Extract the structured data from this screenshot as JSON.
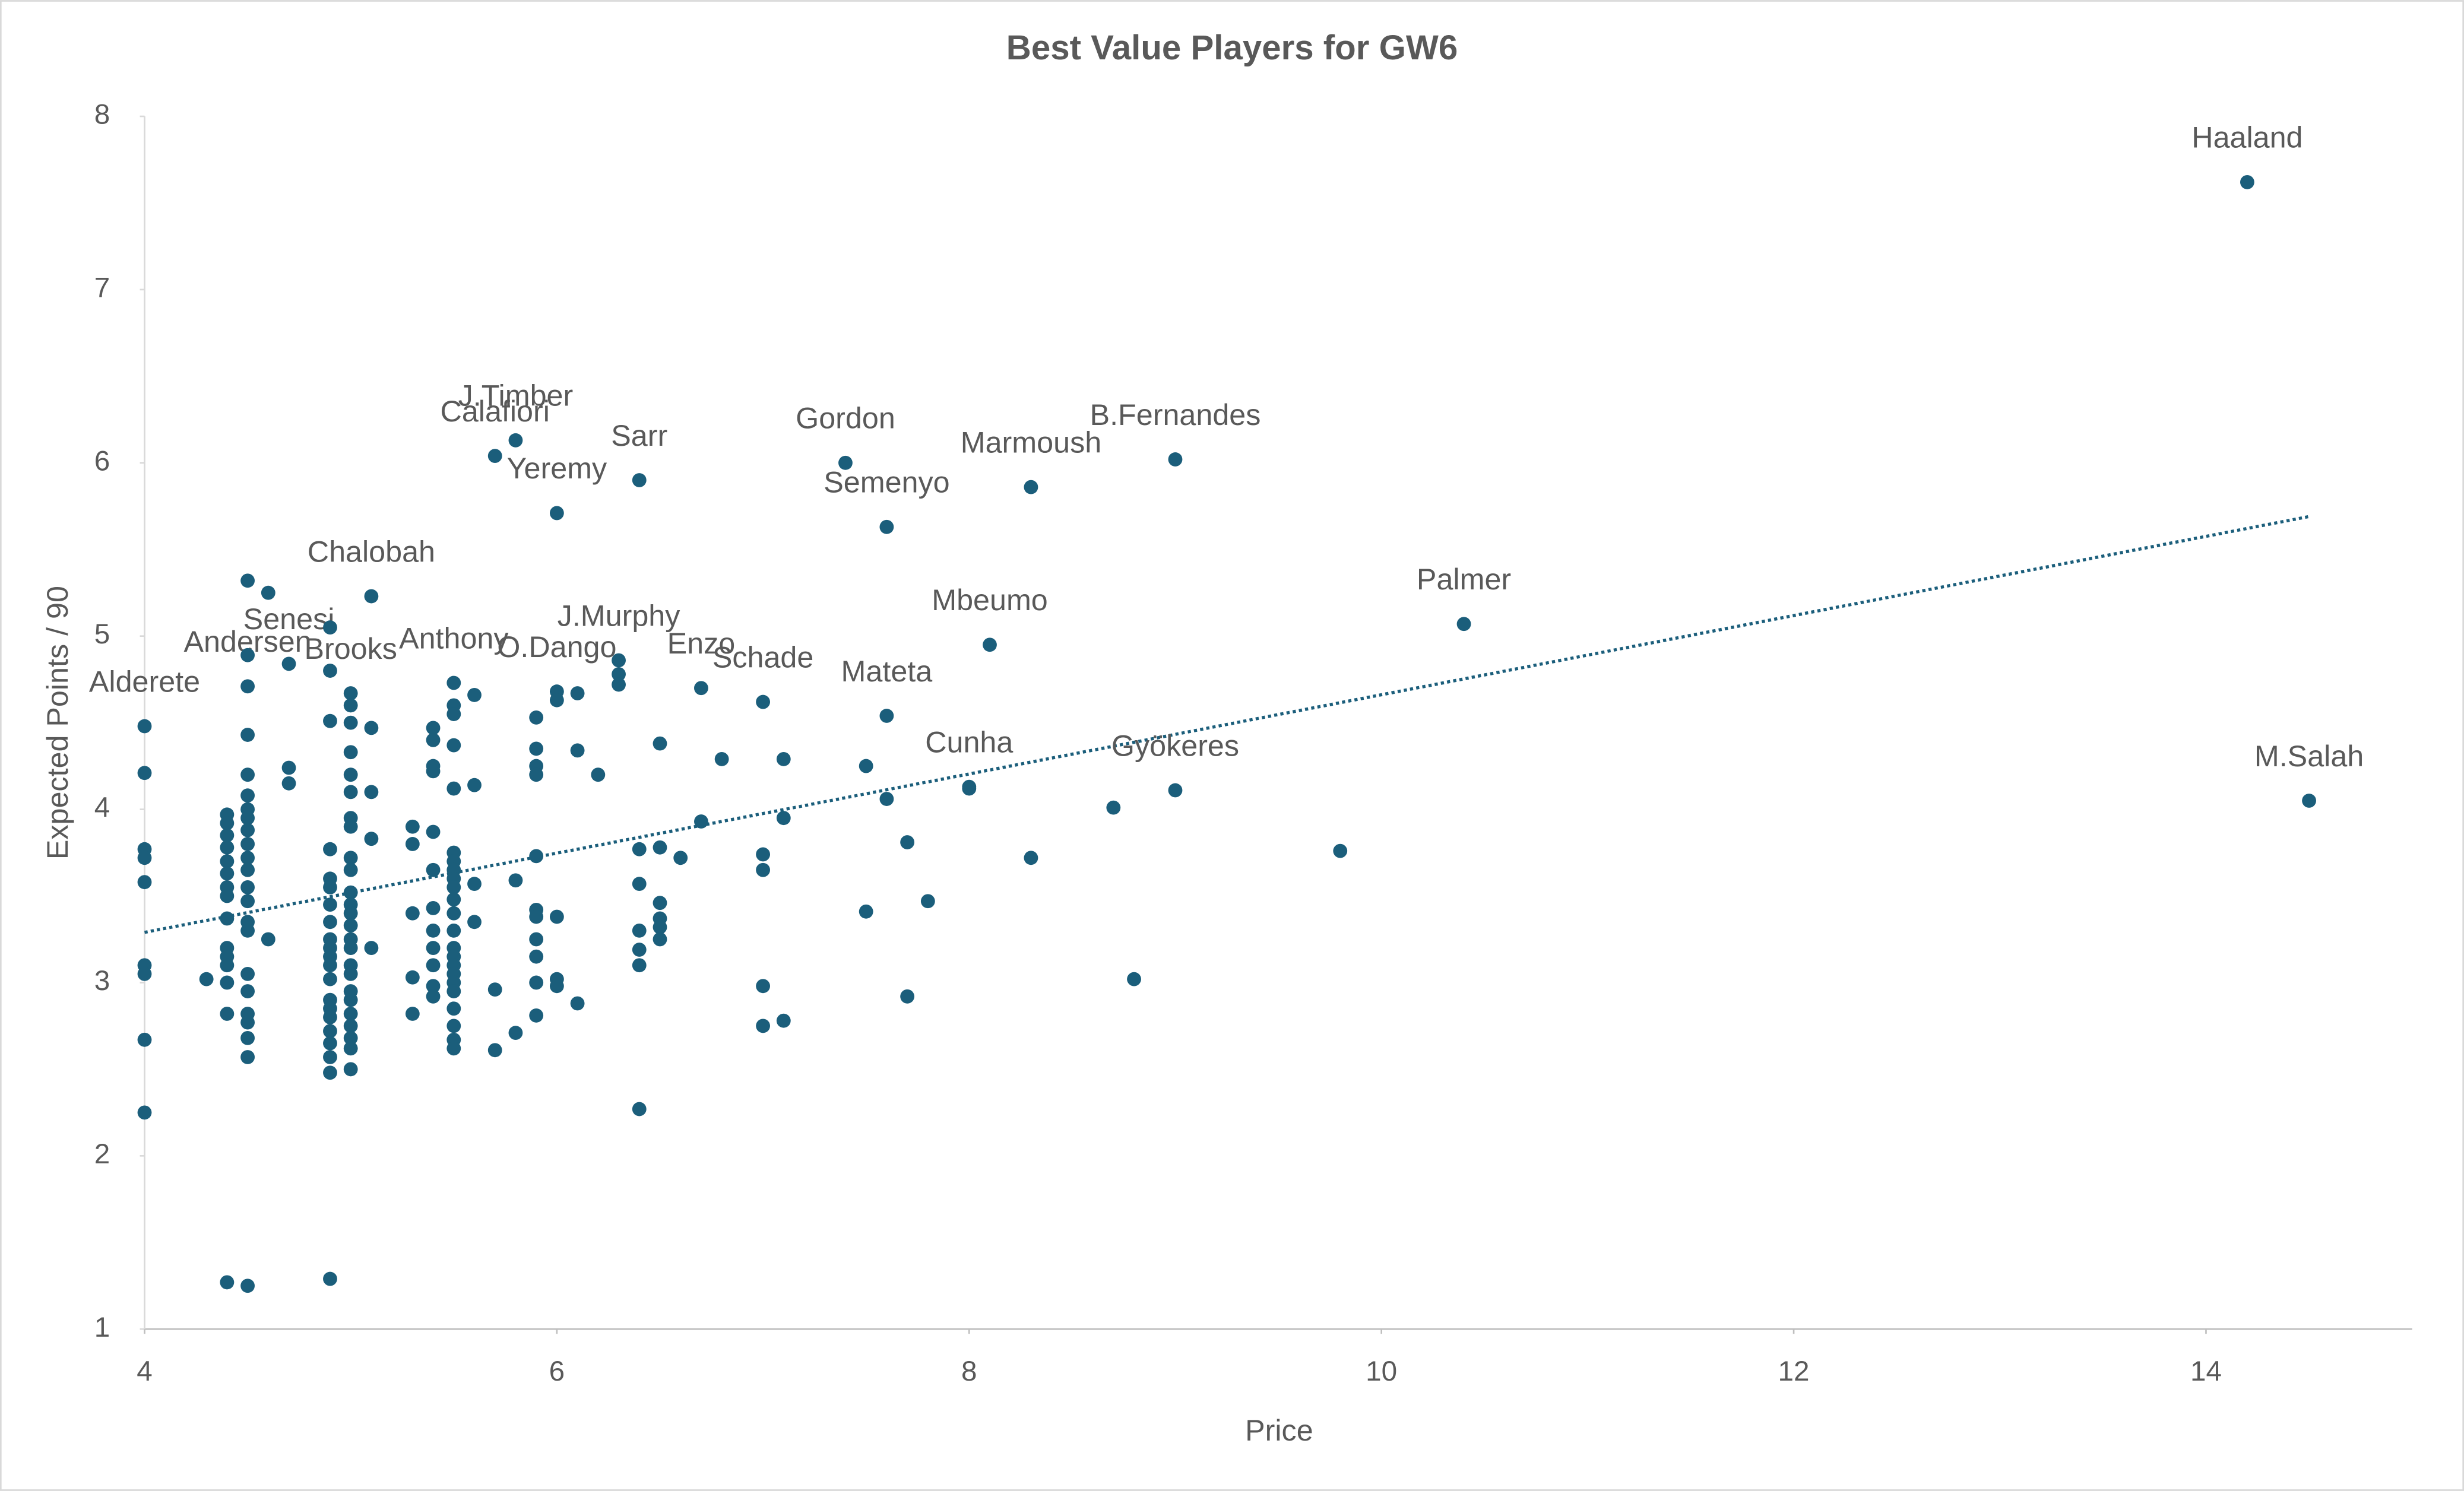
{
  "chart_data": {
    "type": "scatter",
    "title": "Best Value Players for GW6",
    "x_label": "Price",
    "y_label": "Expected Points / 90",
    "xlim": [
      4,
      15
    ],
    "ylim": [
      1,
      8
    ],
    "xticks": [
      4,
      6,
      8,
      10,
      12,
      14
    ],
    "yticks": [
      1,
      2,
      3,
      4,
      5,
      6,
      7,
      8
    ],
    "grid": false,
    "trendline": {
      "style": "dotted",
      "color": "#1b5e7b",
      "x": [
        4,
        14.5
      ],
      "values": [
        3.29,
        5.69
      ]
    },
    "series": [
      {
        "color": "#1b5e7b",
        "labels": [
          "Haaland",
          "M.Salah",
          "Palmer",
          "B.Fernandes",
          "Marmoush",
          "Gordon",
          "Semenyo",
          "Mbeumo",
          "Gyökeres",
          "Cunha",
          "Mateta",
          "Schade",
          "Enzo",
          "Sarr",
          "Yeremy",
          "J.Timber",
          "Calafiori",
          "J.Murphy",
          "O.Dango",
          "Anthony",
          "Chalobah",
          "Senesi",
          "Andersen",
          "Brooks",
          "Alderete"
        ],
        "x": [
          14.2,
          14.5,
          10.4,
          9.0,
          8.3,
          7.4,
          7.6,
          8.1,
          9.0,
          8.0,
          7.6,
          7.0,
          6.7,
          6.4,
          6.0,
          5.8,
          5.7,
          6.3,
          6.0,
          5.5,
          5.1,
          4.7,
          4.5,
          5.0,
          4.0
        ],
        "values": [
          7.62,
          4.05,
          5.07,
          6.02,
          5.86,
          6.0,
          5.63,
          4.95,
          4.11,
          4.13,
          4.54,
          4.62,
          4.7,
          5.9,
          5.71,
          6.13,
          6.04,
          4.86,
          4.68,
          4.73,
          5.23,
          4.84,
          4.71,
          4.67,
          4.48
        ]
      },
      {
        "color": "#1b5e7b",
        "x": [
          4,
          4,
          4,
          4,
          4,
          4,
          4,
          4,
          4.3,
          4.4,
          4.4,
          4.4,
          4.4,
          4.4,
          4.4,
          4.4,
          4.4,
          4.4,
          4.4,
          4.4,
          4.4,
          4.4,
          4.4,
          4.4,
          4.5,
          4.5,
          4.5,
          4.5,
          4.5,
          4.5,
          4.5,
          4.5,
          4.5,
          4.5,
          4.5,
          4.5,
          4.5,
          4.5,
          4.5,
          4.5,
          4.5,
          4.5,
          4.5,
          4.5,
          4.5,
          4.5,
          4.6,
          4.6,
          4.7,
          4.7,
          4.9,
          4.9,
          4.9,
          4.9,
          4.9,
          4.9,
          4.9,
          4.9,
          4.9,
          4.9,
          4.9,
          4.9,
          4.9,
          4.9,
          4.9,
          4.9,
          4.9,
          4.9,
          4.9,
          4.9,
          4.9,
          5,
          5,
          5,
          5,
          5,
          5,
          5,
          5,
          5,
          5,
          5,
          5,
          5,
          5,
          5,
          5,
          5,
          5,
          5,
          5,
          5,
          5,
          5,
          5,
          5.1,
          5.1,
          5.1,
          5.1,
          5.3,
          5.3,
          5.3,
          5.3,
          5.3,
          5.4,
          5.4,
          5.4,
          5.4,
          5.4,
          5.4,
          5.4,
          5.4,
          5.4,
          5.4,
          5.4,
          5.4,
          5.5,
          5.5,
          5.5,
          5.5,
          5.5,
          5.5,
          5.5,
          5.5,
          5.5,
          5.5,
          5.5,
          5.5,
          5.5,
          5.5,
          5.5,
          5.5,
          5.5,
          5.5,
          5.5,
          5.5,
          5.5,
          5.5,
          5.6,
          5.6,
          5.6,
          5.6,
          5.7,
          5.7,
          5.8,
          5.8,
          5.9,
          5.9,
          5.9,
          5.9,
          5.9,
          5.9,
          5.9,
          5.9,
          5.9,
          5.9,
          5.9,
          6,
          6,
          6,
          6,
          6.1,
          6.1,
          6.1,
          6.2,
          6.3,
          6.3,
          6.4,
          6.4,
          6.4,
          6.4,
          6.4,
          6.4,
          6.5,
          6.5,
          6.5,
          6.5,
          6.5,
          6.5,
          6.6,
          6.7,
          6.8,
          7,
          7,
          7,
          7,
          7.1,
          7.1,
          7.1,
          7.5,
          7.5,
          7.6,
          7.7,
          7.7,
          7.8,
          8,
          8.3,
          8.7,
          8.8,
          9.8
        ],
        "values": [
          3.77,
          3.72,
          3.58,
          3.1,
          3.05,
          2.67,
          2.25,
          4.21,
          3.02,
          3.97,
          3.92,
          3.85,
          3.78,
          3.7,
          3.63,
          3.55,
          3.5,
          3.37,
          3.2,
          3.15,
          3.1,
          3.0,
          2.82,
          1.27,
          5.32,
          4.89,
          4.43,
          4.2,
          4.08,
          4.0,
          3.95,
          3.88,
          3.8,
          3.72,
          3.65,
          3.55,
          3.47,
          3.35,
          3.3,
          3.05,
          2.95,
          2.82,
          2.77,
          2.68,
          2.57,
          1.25,
          5.25,
          3.25,
          4.24,
          4.15,
          5.05,
          4.8,
          4.51,
          3.77,
          3.6,
          3.55,
          3.45,
          3.35,
          3.25,
          3.2,
          3.15,
          3.1,
          3.02,
          2.9,
          2.85,
          2.8,
          2.72,
          2.65,
          2.57,
          2.48,
          1.29,
          4.6,
          4.5,
          4.33,
          4.2,
          4.1,
          3.95,
          3.9,
          3.72,
          3.65,
          3.52,
          3.45,
          3.4,
          3.33,
          3.25,
          3.2,
          3.1,
          3.05,
          2.95,
          2.9,
          2.82,
          2.75,
          2.68,
          2.62,
          2.5,
          4.47,
          4.1,
          3.83,
          3.2,
          3.9,
          3.8,
          3.4,
          3.03,
          2.82,
          4.47,
          4.4,
          4.25,
          4.22,
          3.87,
          3.65,
          3.43,
          3.3,
          3.2,
          3.1,
          2.98,
          2.92,
          4.6,
          4.55,
          4.37,
          4.12,
          3.75,
          3.7,
          3.65,
          3.6,
          3.55,
          3.48,
          3.4,
          3.3,
          3.2,
          3.15,
          3.1,
          3.05,
          3.0,
          2.95,
          2.85,
          2.75,
          2.67,
          2.62,
          4.66,
          4.14,
          3.57,
          3.35,
          2.96,
          2.61,
          3.59,
          2.71,
          4.53,
          4.35,
          4.25,
          4.2,
          3.73,
          3.42,
          3.38,
          3.25,
          3.15,
          3.0,
          2.81,
          4.63,
          3.38,
          3.02,
          2.98,
          4.67,
          4.34,
          2.88,
          4.2,
          4.78,
          4.72,
          3.77,
          3.57,
          3.3,
          3.19,
          3.1,
          2.27,
          4.38,
          3.78,
          3.46,
          3.37,
          3.32,
          3.25,
          3.72,
          3.93,
          4.29,
          3.74,
          3.65,
          2.98,
          2.75,
          4.29,
          3.95,
          2.78,
          4.25,
          3.41,
          4.06,
          3.81,
          2.92,
          3.47,
          4.12,
          3.72,
          4.01,
          3.02,
          3.76
        ]
      }
    ]
  }
}
